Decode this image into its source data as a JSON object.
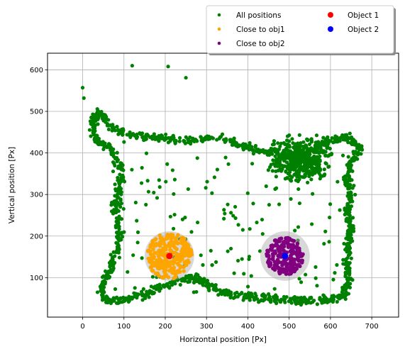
{
  "chart_data": {
    "type": "scatter",
    "xlabel": "Horizontal position [Px]",
    "ylabel": "Vertical position [Px]",
    "xlim": [
      -85,
      765
    ],
    "ylim": [
      5,
      640
    ],
    "xticks": [
      0,
      100,
      200,
      300,
      400,
      500,
      600,
      700
    ],
    "yticks": [
      100,
      200,
      300,
      400,
      500,
      600
    ],
    "grid": true,
    "legend": {
      "placement": "top-right, above the plot",
      "columns": 2,
      "entries": [
        {
          "label": "All positions",
          "marker": "small-dot",
          "color": "#008000"
        },
        {
          "label": "Close to obj1",
          "marker": "small-dot",
          "color": "#FFA500"
        },
        {
          "label": "Close to obj2",
          "marker": "small-dot",
          "color": "#800080"
        },
        {
          "label": "Object 1",
          "marker": "dot",
          "color": "#FF0000"
        },
        {
          "label": "Object 2",
          "marker": "dot",
          "color": "#0000FF"
        }
      ]
    },
    "objects": [
      {
        "name": "Object 1",
        "x": 210,
        "y": 152,
        "radius": 60,
        "color": "#FF0000"
      },
      {
        "name": "Object 2",
        "x": 490,
        "y": 152,
        "radius": 60,
        "color": "#0000FF"
      }
    ],
    "outliers": [
      [
        0,
        557
      ],
      [
        3,
        532
      ],
      [
        207,
        608
      ],
      [
        250,
        581
      ],
      [
        120,
        610
      ]
    ],
    "trajectory_outline": [
      [
        40,
        500
      ],
      [
        60,
        470
      ],
      [
        100,
        445
      ],
      [
        150,
        440
      ],
      [
        200,
        435
      ],
      [
        260,
        430
      ],
      [
        330,
        440
      ],
      [
        380,
        420
      ],
      [
        430,
        405
      ],
      [
        470,
        400
      ],
      [
        520,
        395
      ],
      [
        560,
        410
      ],
      [
        600,
        430
      ],
      [
        640,
        440
      ],
      [
        670,
        415
      ],
      [
        650,
        380
      ],
      [
        640,
        340
      ],
      [
        650,
        300
      ],
      [
        640,
        260
      ],
      [
        650,
        220
      ],
      [
        640,
        180
      ],
      [
        640,
        130
      ],
      [
        645,
        90
      ],
      [
        630,
        55
      ],
      [
        590,
        45
      ],
      [
        540,
        45
      ],
      [
        490,
        45
      ],
      [
        440,
        50
      ],
      [
        400,
        55
      ],
      [
        350,
        60
      ],
      [
        310,
        80
      ],
      [
        280,
        95
      ],
      [
        250,
        100
      ],
      [
        200,
        80
      ],
      [
        150,
        60
      ],
      [
        100,
        45
      ],
      [
        60,
        45
      ],
      [
        45,
        70
      ],
      [
        60,
        110
      ],
      [
        80,
        150
      ],
      [
        90,
        200
      ],
      [
        80,
        260
      ],
      [
        85,
        300
      ],
      [
        95,
        360
      ],
      [
        70,
        410
      ],
      [
        30,
        430
      ],
      [
        25,
        470
      ],
      [
        40,
        500
      ]
    ],
    "series": [
      {
        "name": "All positions",
        "color": "#008000",
        "count": 1500
      },
      {
        "name": "Close to obj1",
        "color": "#FFA500",
        "count": 260
      },
      {
        "name": "Close to obj2",
        "color": "#800080",
        "count": 200
      }
    ]
  }
}
